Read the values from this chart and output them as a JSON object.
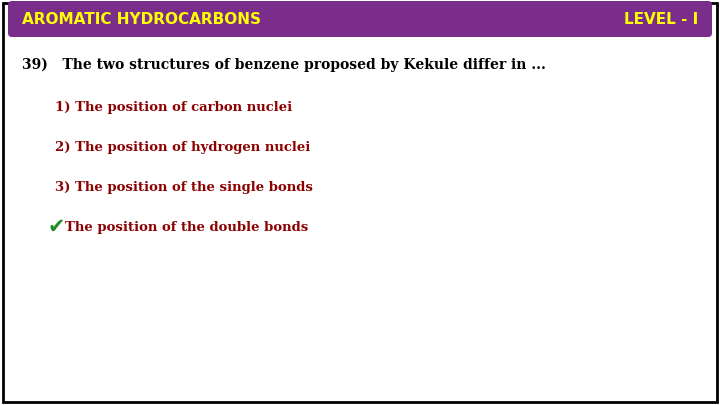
{
  "background_color": "#ffffff",
  "border_color": "#000000",
  "header_bg_color": "#7b2d8b",
  "header_text_left": "AROMATIC HYDROCARBONS",
  "header_text_right": "LEVEL - I",
  "header_text_color": "#ffff00",
  "question_text": "39)   The two structures of benzene proposed by Kekule differ in ...",
  "question_color": "#000000",
  "options": [
    "1) The position of carbon nuclei",
    "2) The position of hydrogen nuclei",
    "3) The position of the single bonds"
  ],
  "correct_option": "The position of the double bonds",
  "option_color": "#8b0000",
  "checkmark": "✔",
  "checkmark_color": "#228b22",
  "header_fontsize": 11,
  "question_fontsize": 10,
  "option_fontsize": 9.5
}
